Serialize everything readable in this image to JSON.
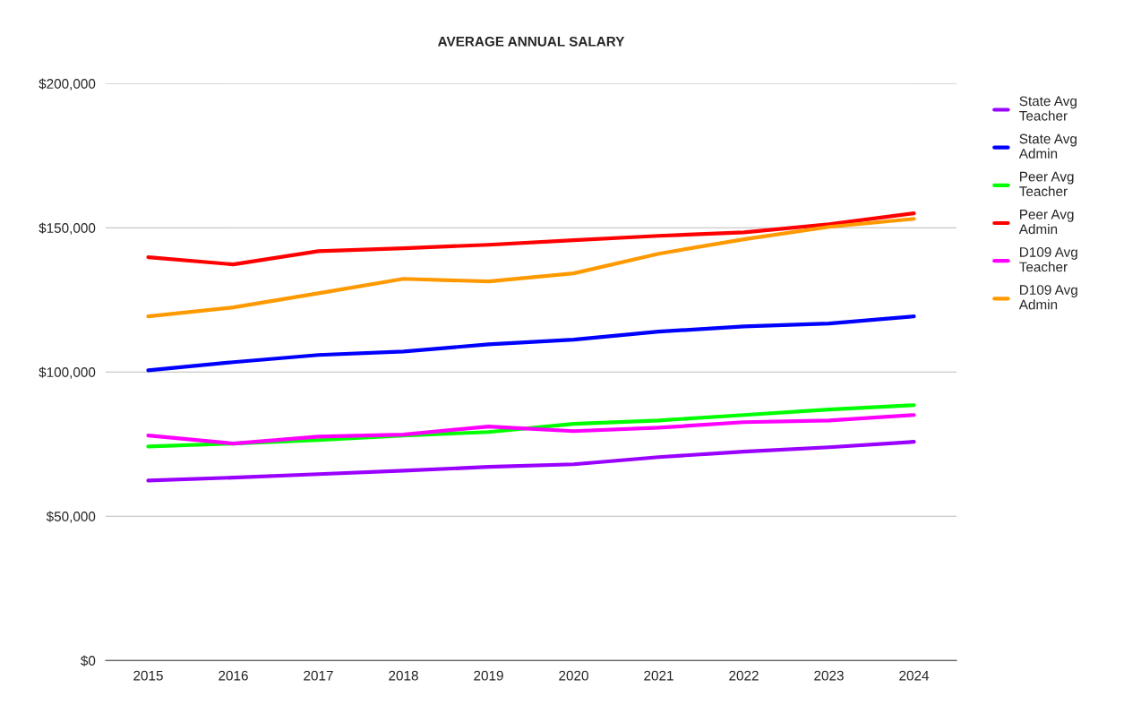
{
  "chart_data": {
    "type": "line",
    "title": "AVERAGE ANNUAL SALARY",
    "categories": [
      "2015",
      "2016",
      "2017",
      "2018",
      "2019",
      "2020",
      "2021",
      "2022",
      "2023",
      "2024"
    ],
    "series": [
      {
        "name": "State Avg\nTeacher",
        "color": "#9900ff",
        "values": [
          62400,
          63400,
          64600,
          65800,
          67100,
          68000,
          70500,
          72400,
          73900,
          75800
        ]
      },
      {
        "name": "State Avg\nAdmin",
        "color": "#0000ff",
        "values": [
          100600,
          103400,
          105900,
          107100,
          109600,
          111200,
          114000,
          115800,
          116800,
          119300
        ]
      },
      {
        "name": "Peer Avg\nTeacher",
        "color": "#00ff00",
        "values": [
          74200,
          75200,
          76400,
          78000,
          79200,
          82000,
          83200,
          85100,
          87000,
          88500
        ]
      },
      {
        "name": "Peer Avg\nAdmin",
        "color": "#ff0000",
        "values": [
          139800,
          137300,
          141900,
          142900,
          144100,
          145700,
          147200,
          148400,
          151200,
          155000
        ]
      },
      {
        "name": "D109 Avg\nTeacher",
        "color": "#ff00ff",
        "values": [
          78000,
          75200,
          77600,
          78300,
          81100,
          79500,
          80700,
          82600,
          83200,
          85100
        ]
      },
      {
        "name": "D109 Avg\nAdmin",
        "color": "#ff9900",
        "values": [
          119300,
          122400,
          127300,
          132300,
          131400,
          134200,
          141000,
          146000,
          150300,
          153100
        ]
      }
    ],
    "ylim": [
      0,
      200000
    ],
    "yticks": [
      {
        "value": 0,
        "label": "$0"
      },
      {
        "value": 50000,
        "label": "$50,000"
      },
      {
        "value": 100000,
        "label": "$100,000"
      },
      {
        "value": 150000,
        "label": "$150,000"
      },
      {
        "value": 200000,
        "label": "$200,000"
      }
    ],
    "grid": "y",
    "legend": "top right",
    "marker": "none",
    "line_style": "solid"
  }
}
